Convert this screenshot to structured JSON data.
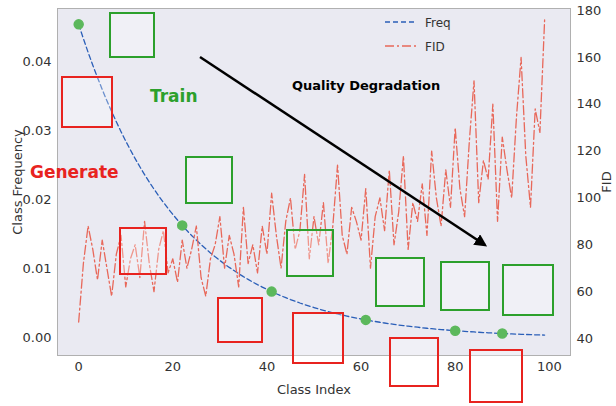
{
  "chart_data": {
    "type": "line",
    "x_label": "Class Index",
    "y_label": "Class Frequency",
    "y2_label": "FID",
    "x": [
      0,
      1,
      2,
      3,
      4,
      5,
      6,
      7,
      8,
      9,
      10,
      11,
      12,
      13,
      14,
      15,
      16,
      17,
      18,
      19,
      20,
      21,
      22,
      23,
      24,
      25,
      26,
      27,
      28,
      29,
      30,
      31,
      32,
      33,
      34,
      35,
      36,
      37,
      38,
      39,
      40,
      41,
      42,
      43,
      44,
      45,
      46,
      47,
      48,
      49,
      50,
      51,
      52,
      53,
      54,
      55,
      56,
      57,
      58,
      59,
      60,
      61,
      62,
      63,
      64,
      65,
      66,
      67,
      68,
      69,
      70,
      71,
      72,
      73,
      74,
      75,
      76,
      77,
      78,
      79,
      80,
      81,
      82,
      83,
      84,
      85,
      86,
      87,
      88,
      89,
      90,
      91,
      92,
      93,
      94,
      95,
      96,
      97,
      98,
      99
    ],
    "xlim": [
      -4.5,
      104.5
    ],
    "xticks": [
      0,
      20,
      40,
      60,
      80,
      100
    ],
    "ylim": [
      -0.0025,
      0.0478
    ],
    "yticks": [
      {
        "value": 0,
        "label": "0.00"
      },
      0.01,
      0.02,
      0.03,
      0.04
    ],
    "y2lim": [
      32.7,
      180.9
    ],
    "y2ticks": [
      40,
      60,
      80,
      100,
      120,
      140,
      160,
      180
    ],
    "grid": false,
    "legend": "top",
    "series": [
      {
        "name": "Freq",
        "color": "#2b5fb8",
        "line_style": "dashed",
        "values": [
          0.0455,
          0.04343,
          0.04146,
          0.03958,
          0.03778,
          0.03606,
          0.03442,
          0.03286,
          0.03137,
          0.02994,
          0.02858,
          0.02728,
          0.02604,
          0.02486,
          0.02373,
          0.02265,
          0.02162,
          0.02064,
          0.0197,
          0.01881,
          0.01795,
          0.01714,
          0.01636,
          0.01561,
          0.0149,
          0.01423,
          0.01358,
          0.01296,
          0.01237,
          0.01181,
          0.01128,
          0.01076,
          0.01027,
          0.00981,
          0.00936,
          0.00893,
          0.00853,
          0.00814,
          0.00777,
          0.00742,
          0.00708,
          0.00676,
          0.00645,
          0.00616,
          0.00588,
          0.00561,
          0.00536,
          0.00511,
          0.00488,
          0.00466,
          0.00445,
          0.00424,
          0.00405,
          0.00387,
          0.00369,
          0.00352,
          0.00336,
          0.00321,
          0.00306,
          0.00292,
          0.00279,
          0.00266,
          0.00254,
          0.00243,
          0.00232,
          0.00221,
          0.00211,
          0.00201,
          0.00192,
          0.00184,
          0.00175,
          0.00167,
          0.0016,
          0.00152,
          0.00145,
          0.00139,
          0.00132,
          0.00126,
          0.00121,
          0.00115,
          0.0011,
          0.00105,
          0.001,
          0.00096,
          0.00091,
          0.00087,
          0.00083,
          0.00079,
          0.00076,
          0.00072,
          0.00069,
          0.00066,
          0.00063,
          0.0006,
          0.00057,
          0.00055,
          0.00052,
          0.0005,
          0.00048,
          0.00046
        ]
      },
      {
        "name": "FID",
        "color": "#e8685a",
        "line_style": "dashdot",
        "axis": "y2",
        "values": [
          47,
          72,
          88,
          78,
          65,
          82,
          70,
          58,
          76,
          84,
          62,
          74,
          80,
          66,
          90,
          72,
          60,
          78,
          86,
          68,
          74,
          64,
          82,
          70,
          78,
          88,
          66,
          58,
          74,
          80,
          92,
          70,
          84,
          76,
          62,
          96,
          72,
          80,
          68,
          88,
          76,
          102,
          84,
          70,
          90,
          100,
          78,
          86,
          110,
          74,
          92,
          80,
          98,
          72,
          88,
          114,
          84,
          76,
          96,
          90,
          82,
          104,
          70,
          92,
          100,
          86,
          112,
          80,
          94,
          118,
          78,
          98,
          90,
          106,
          84,
          120,
          100,
          88,
          112,
          96,
          130,
          104,
          92,
          124,
          150,
          98,
          116,
          108,
          140,
          90,
          126,
          112,
          100,
          134,
          160,
          118,
          96,
          138,
          128,
          176
        ]
      },
      {
        "type": "scatter",
        "color": "#5cb85c",
        "marker": "circle",
        "x": [
          0,
          22,
          41,
          61,
          80,
          90
        ],
        "values": [
          0.0455,
          0.01636,
          0.00676,
          0.00266,
          0.0011,
          0.00069
        ]
      }
    ],
    "annotations": [
      {
        "text": "Quality Degradation",
        "color": "#000000"
      },
      {
        "text": "Train",
        "color": "#2ca02c"
      },
      {
        "text": "Generate",
        "color": "#e8231f"
      }
    ]
  }
}
